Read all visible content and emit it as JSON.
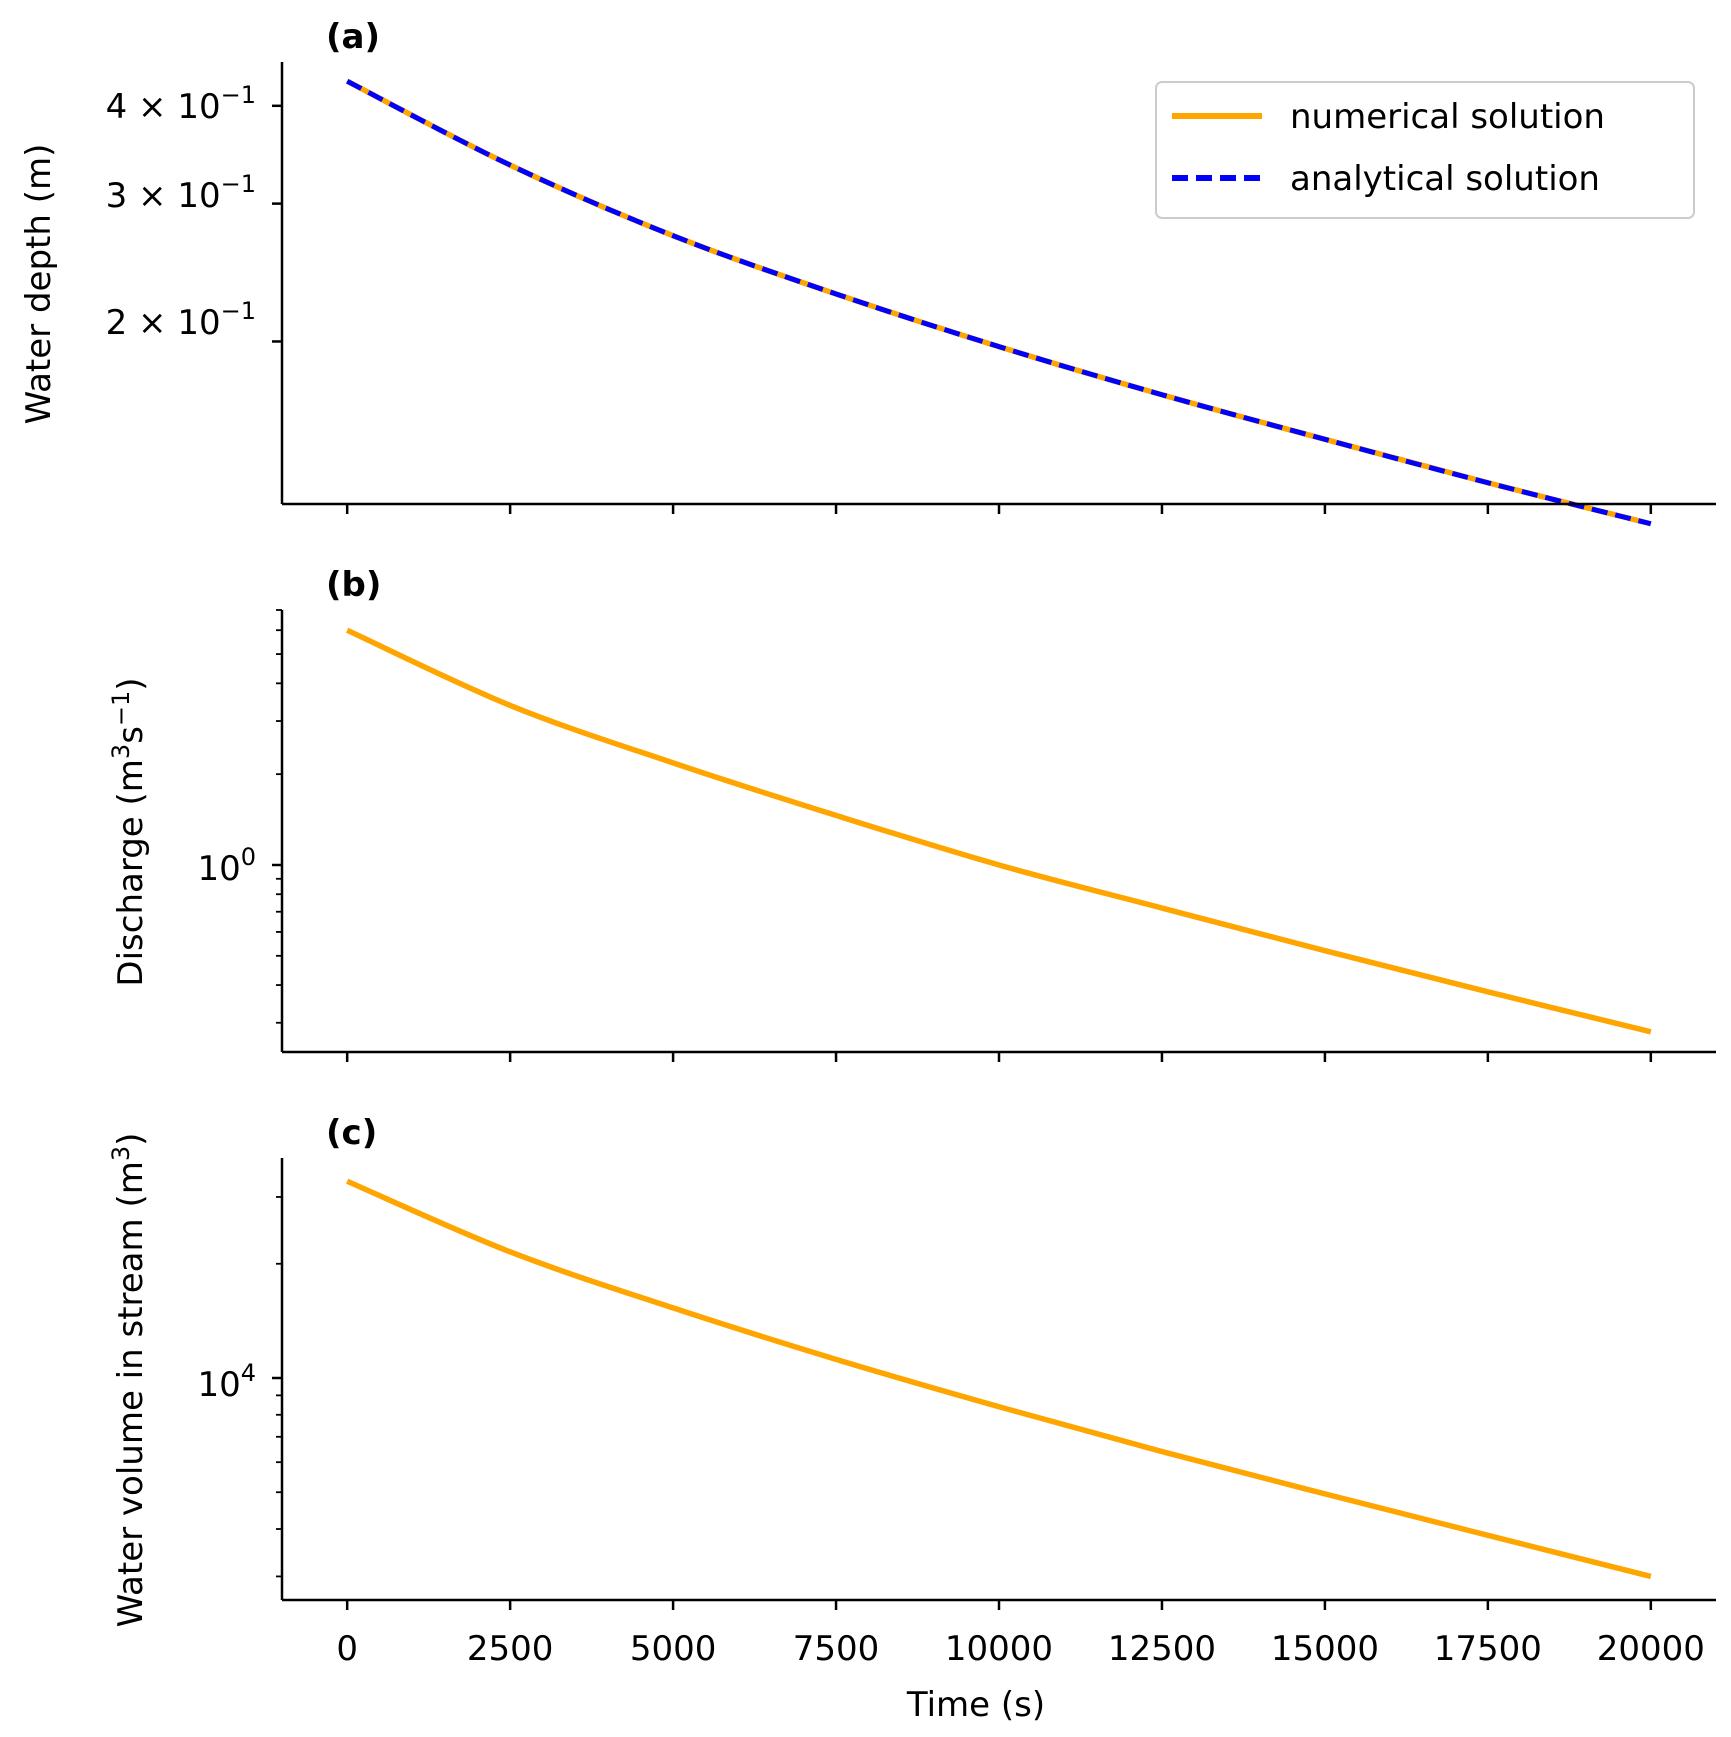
{
  "figure": {
    "xlabel": "Time (s)",
    "x_tick_labels": [
      "0",
      "2500",
      "5000",
      "7500",
      "10000",
      "12500",
      "15000",
      "17500",
      "20000"
    ]
  },
  "legend": {
    "numerical_label": "numerical solution",
    "analytical_label": "analytical solution"
  },
  "panels": {
    "a": {
      "tag": "(a)",
      "ylabel": "Water depth (m)",
      "ytick_mantissa": [
        "4 × 10",
        "3 × 10",
        "2 × 10"
      ],
      "ytick_exponent": "−1"
    },
    "b": {
      "tag": "(b)",
      "ylabel_main": "Discharge (m",
      "ylabel_sup1": "3",
      "ylabel_mid": "s",
      "ylabel_sup2": "−1",
      "ylabel_end": ")",
      "ytick_base": "10",
      "ytick_exponent": "0"
    },
    "c": {
      "tag": "(c)",
      "ylabel_main": "Water volume in stream (m",
      "ylabel_sup": "3",
      "ylabel_end": ")",
      "ytick_base": "10",
      "ytick_exponent": "4"
    }
  },
  "colors": {
    "numerical": "#FFA500",
    "analytical": "#0000FF",
    "axis": "#000000"
  },
  "chart_data": [
    {
      "type": "line",
      "panel": "a",
      "title": "(a)",
      "xlabel": "",
      "ylabel": "Water depth (m)",
      "yscale": "log",
      "xlim": [
        -1000,
        21000
      ],
      "ylim": [
        0.124,
        0.455
      ],
      "yticks": [
        0.4,
        0.3,
        0.2
      ],
      "x": [
        0,
        2500,
        5000,
        7500,
        10000,
        12500,
        15000,
        17500,
        20000
      ],
      "series": [
        {
          "name": "numerical solution",
          "values": [
            0.43,
            0.336,
            0.273,
            0.23,
            0.197,
            0.171,
            0.15,
            0.132,
            0.117
          ]
        },
        {
          "name": "analytical solution",
          "values": [
            0.43,
            0.336,
            0.273,
            0.23,
            0.197,
            0.171,
            0.15,
            0.132,
            0.117
          ]
        }
      ],
      "legend_position": "upper right"
    },
    {
      "type": "line",
      "panel": "b",
      "title": "(b)",
      "xlabel": "",
      "ylabel": "Discharge (m3s−1)",
      "yscale": "log",
      "xlim": [
        -1000,
        21000
      ],
      "ylim": [
        0.24,
        7.0
      ],
      "yticks": [
        1
      ],
      "x": [
        0,
        2500,
        5000,
        7500,
        10000,
        12500,
        15000,
        17500,
        20000
      ],
      "series": [
        {
          "name": "numerical solution",
          "values": [
            6.0,
            3.38,
            2.18,
            1.46,
            1.0,
            0.72,
            0.52,
            0.38,
            0.28
          ]
        }
      ]
    },
    {
      "type": "line",
      "panel": "c",
      "title": "(c)",
      "xlabel": "Time (s)",
      "ylabel": "Water volume in stream (m3)",
      "yscale": "log",
      "xlim": [
        -1000,
        21000
      ],
      "ylim": [
        2600,
        38000
      ],
      "yticks": [
        10000
      ],
      "x": [
        0,
        2500,
        5000,
        7500,
        10000,
        12500,
        15000,
        17500,
        20000
      ],
      "series": [
        {
          "name": "numerical solution",
          "values": [
            33000,
            21500,
            15300,
            11200,
            8400,
            6400,
            4950,
            3850,
            3000
          ]
        }
      ]
    }
  ]
}
